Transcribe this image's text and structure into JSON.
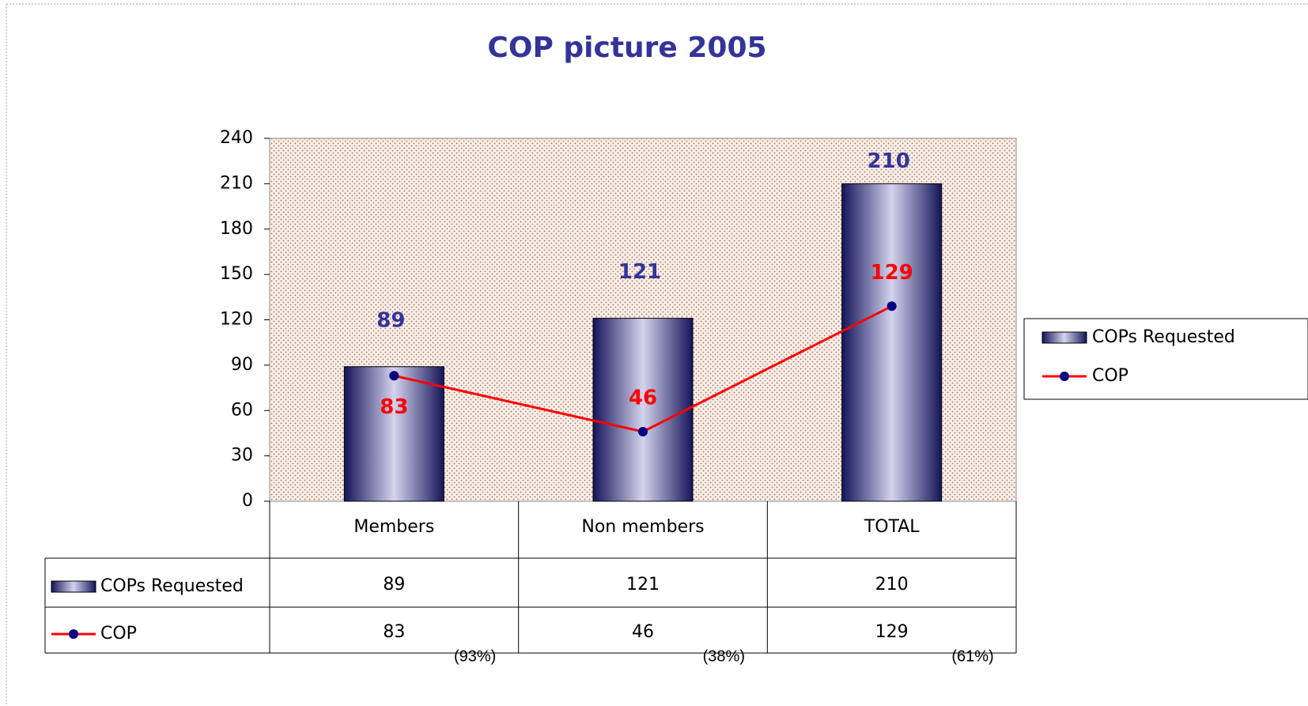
{
  "chart_data": {
    "type": "bar",
    "title": "COP picture 2005",
    "categories": [
      "Members",
      "Non members",
      "TOTAL"
    ],
    "series": [
      {
        "name": "COPs Requested",
        "type": "bar",
        "color": "#2a2a7a",
        "values": [
          89,
          121,
          210
        ]
      },
      {
        "name": "COP",
        "type": "line",
        "color": "#ff0000",
        "values": [
          83,
          46,
          129
        ]
      }
    ],
    "ylim": [
      0,
      240
    ],
    "yticks": [
      0,
      30,
      60,
      90,
      120,
      150,
      180,
      210,
      240
    ],
    "grid": false,
    "legend": "right",
    "annotations": [
      "(93%)",
      "(38%)",
      "(61%)"
    ]
  }
}
